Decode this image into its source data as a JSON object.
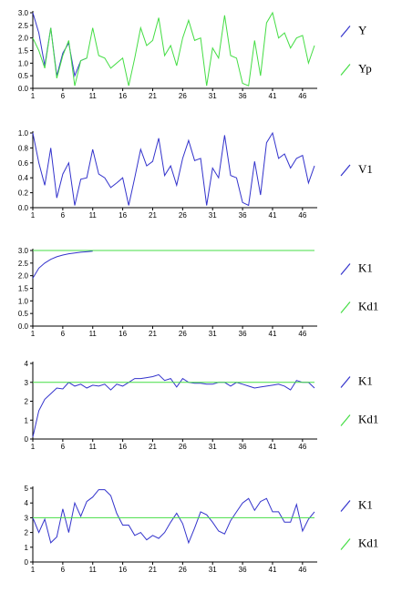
{
  "chart_data": [
    {
      "type": "line",
      "x": [
        1,
        2,
        3,
        4,
        5,
        6,
        7,
        8,
        9,
        10,
        11,
        12,
        13,
        14,
        15,
        16,
        17,
        18,
        19,
        20,
        21,
        22,
        23,
        24,
        25,
        26,
        27,
        28,
        29,
        30,
        31,
        32,
        33,
        34,
        35,
        36,
        37,
        38,
        39,
        40,
        41,
        42,
        43,
        44,
        45,
        46,
        47,
        48
      ],
      "xlim": [
        1,
        48
      ],
      "xticks": [
        1,
        6,
        11,
        16,
        21,
        26,
        31,
        36,
        41,
        46
      ],
      "ylim": [
        0,
        3
      ],
      "yticks": [
        {
          "value": 0,
          "label": "0.0"
        },
        {
          "value": 0.5,
          "label": "0.5"
        },
        {
          "value": 1,
          "label": "1.0"
        },
        {
          "value": 1.5,
          "label": "1.5"
        },
        {
          "value": 2,
          "label": "2.0"
        },
        {
          "value": 2.5,
          "label": "2.5"
        },
        {
          "value": 3,
          "label": "3.0"
        }
      ],
      "series": [
        {
          "name": "Y",
          "color": "#3333cc",
          "values": [
            3.0,
            2.2,
            0.9,
            2.4,
            0.5,
            1.4,
            1.8,
            0.5,
            1.1,
            1.2,
            null,
            null,
            null,
            null,
            null,
            null,
            null,
            null,
            null,
            null,
            null,
            null,
            null,
            null,
            null,
            null,
            null,
            null,
            null,
            null,
            null,
            null,
            null,
            null,
            null,
            null,
            null,
            null,
            null,
            null,
            null,
            null,
            null,
            null,
            null,
            null,
            null,
            null
          ]
        },
        {
          "name": "Yp",
          "color": "#44dd44",
          "values": [
            2.0,
            1.5,
            0.8,
            2.4,
            0.4,
            1.3,
            1.9,
            0.1,
            1.1,
            1.2,
            2.4,
            1.3,
            1.2,
            0.8,
            1.0,
            1.2,
            0.1,
            1.2,
            2.4,
            1.7,
            1.9,
            2.8,
            1.3,
            1.7,
            0.9,
            2.0,
            2.7,
            1.9,
            2.0,
            0.1,
            1.6,
            1.2,
            2.9,
            1.3,
            1.2,
            0.2,
            0.1,
            1.9,
            0.5,
            2.6,
            3.0,
            2.0,
            2.2,
            1.6,
            2.0,
            2.1,
            1.0,
            1.7
          ]
        }
      ]
    },
    {
      "type": "line",
      "x": [
        1,
        2,
        3,
        4,
        5,
        6,
        7,
        8,
        9,
        10,
        11,
        12,
        13,
        14,
        15,
        16,
        17,
        18,
        19,
        20,
        21,
        22,
        23,
        24,
        25,
        26,
        27,
        28,
        29,
        30,
        31,
        32,
        33,
        34,
        35,
        36,
        37,
        38,
        39,
        40,
        41,
        42,
        43,
        44,
        45,
        46,
        47,
        48
      ],
      "xlim": [
        1,
        48
      ],
      "xticks": [
        1,
        6,
        11,
        16,
        21,
        26,
        31,
        36,
        41,
        46
      ],
      "ylim": [
        0,
        1
      ],
      "yticks": [
        {
          "value": 0,
          "label": "0.0"
        },
        {
          "value": 0.2,
          "label": "0.2"
        },
        {
          "value": 0.4,
          "label": "0.4"
        },
        {
          "value": 0.6,
          "label": "0.6"
        },
        {
          "value": 0.8,
          "label": "0.8"
        },
        {
          "value": 1,
          "label": "1.0"
        }
      ],
      "series": [
        {
          "name": "V1",
          "color": "#3333cc",
          "values": [
            1.0,
            0.6,
            0.3,
            0.8,
            0.13,
            0.45,
            0.6,
            0.03,
            0.38,
            0.4,
            0.78,
            0.45,
            0.4,
            0.27,
            0.33,
            0.4,
            0.03,
            0.4,
            0.78,
            0.56,
            0.62,
            0.93,
            0.43,
            0.56,
            0.3,
            0.66,
            0.9,
            0.63,
            0.66,
            0.03,
            0.53,
            0.4,
            0.97,
            0.43,
            0.4,
            0.07,
            0.03,
            0.62,
            0.17,
            0.87,
            1.0,
            0.66,
            0.72,
            0.53,
            0.66,
            0.7,
            0.33,
            0.56
          ]
        }
      ]
    },
    {
      "type": "line",
      "x": [
        1,
        2,
        3,
        4,
        5,
        6,
        7,
        8,
        9,
        10,
        11,
        12,
        13,
        14,
        15,
        16,
        17,
        18,
        19,
        20,
        21,
        22,
        23,
        24,
        25,
        26,
        27,
        28,
        29,
        30,
        31,
        32,
        33,
        34,
        35,
        36,
        37,
        38,
        39,
        40,
        41,
        42,
        43,
        44,
        45,
        46,
        47,
        48
      ],
      "xlim": [
        1,
        48
      ],
      "xticks": [
        1,
        6,
        11,
        16,
        21,
        26,
        31,
        36,
        41,
        46
      ],
      "ylim": [
        0,
        3
      ],
      "yticks": [
        {
          "value": 0,
          "label": "0.0"
        },
        {
          "value": 0.5,
          "label": "0.5"
        },
        {
          "value": 1,
          "label": "1.0"
        },
        {
          "value": 1.5,
          "label": "1.5"
        },
        {
          "value": 2,
          "label": "2.0"
        },
        {
          "value": 2.5,
          "label": "2.5"
        },
        {
          "value": 3,
          "label": "3.0"
        }
      ],
      "series": [
        {
          "name": "K1",
          "color": "#3333cc",
          "values": [
            1.9,
            2.3,
            2.5,
            2.65,
            2.75,
            2.82,
            2.87,
            2.9,
            2.93,
            2.95,
            2.97,
            null,
            null,
            null,
            null,
            null,
            null,
            null,
            null,
            null,
            null,
            null,
            null,
            null,
            null,
            null,
            null,
            null,
            null,
            null,
            null,
            null,
            null,
            null,
            null,
            null,
            null,
            null,
            null,
            null,
            null,
            null,
            null,
            null,
            null,
            null,
            null,
            null
          ]
        },
        {
          "name": "Kd1",
          "color": "#44dd44",
          "values": [
            3,
            3,
            3,
            3,
            3,
            3,
            3,
            3,
            3,
            3,
            3,
            3,
            3,
            3,
            3,
            3,
            3,
            3,
            3,
            3,
            3,
            3,
            3,
            3,
            3,
            3,
            3,
            3,
            3,
            3,
            3,
            3,
            3,
            3,
            3,
            3,
            3,
            3,
            3,
            3,
            3,
            3,
            3,
            3,
            3,
            3,
            3,
            3
          ]
        }
      ]
    },
    {
      "type": "line",
      "x": [
        1,
        2,
        3,
        4,
        5,
        6,
        7,
        8,
        9,
        10,
        11,
        12,
        13,
        14,
        15,
        16,
        17,
        18,
        19,
        20,
        21,
        22,
        23,
        24,
        25,
        26,
        27,
        28,
        29,
        30,
        31,
        32,
        33,
        34,
        35,
        36,
        37,
        38,
        39,
        40,
        41,
        42,
        43,
        44,
        45,
        46,
        47,
        48
      ],
      "xlim": [
        1,
        48
      ],
      "xticks": [
        1,
        6,
        11,
        16,
        21,
        26,
        31,
        36,
        41,
        46
      ],
      "ylim": [
        0,
        4
      ],
      "yticks": [
        0,
        1,
        2,
        3,
        4
      ],
      "series": [
        {
          "name": "K1",
          "color": "#3333cc",
          "values": [
            0.1,
            1.5,
            2.1,
            2.4,
            2.7,
            2.65,
            3.0,
            2.8,
            2.9,
            2.7,
            2.85,
            2.8,
            2.9,
            2.6,
            2.9,
            2.8,
            3.0,
            3.2,
            3.2,
            3.25,
            3.3,
            3.4,
            3.1,
            3.2,
            2.75,
            3.2,
            3.0,
            2.95,
            2.95,
            2.9,
            2.9,
            3.0,
            3.0,
            2.8,
            3.0,
            2.9,
            2.8,
            2.7,
            2.75,
            2.8,
            2.85,
            2.9,
            2.8,
            2.6,
            3.1,
            3.0,
            3.0,
            2.7
          ]
        },
        {
          "name": "Kd1",
          "color": "#44dd44",
          "values": [
            3,
            3,
            3,
            3,
            3,
            3,
            3,
            3,
            3,
            3,
            3,
            3,
            3,
            3,
            3,
            3,
            3,
            3,
            3,
            3,
            3,
            3,
            3,
            3,
            3,
            3,
            3,
            3,
            3,
            3,
            3,
            3,
            3,
            3,
            3,
            3,
            3,
            3,
            3,
            3,
            3,
            3,
            3,
            3,
            3,
            3,
            3,
            3
          ]
        }
      ]
    },
    {
      "type": "line",
      "x": [
        1,
        2,
        3,
        4,
        5,
        6,
        7,
        8,
        9,
        10,
        11,
        12,
        13,
        14,
        15,
        16,
        17,
        18,
        19,
        20,
        21,
        22,
        23,
        24,
        25,
        26,
        27,
        28,
        29,
        30,
        31,
        32,
        33,
        34,
        35,
        36,
        37,
        38,
        39,
        40,
        41,
        42,
        43,
        44,
        45,
        46,
        47,
        48
      ],
      "xlim": [
        1,
        48
      ],
      "xticks": [
        1,
        6,
        11,
        16,
        21,
        26,
        31,
        36,
        41,
        46
      ],
      "ylim": [
        0,
        5
      ],
      "yticks": [
        0,
        1,
        2,
        3,
        4,
        5
      ],
      "series": [
        {
          "name": "K1",
          "color": "#3333cc",
          "values": [
            3.0,
            2.0,
            2.9,
            1.3,
            1.7,
            3.6,
            2.0,
            4.0,
            3.1,
            4.1,
            4.4,
            4.9,
            4.9,
            4.5,
            3.3,
            2.5,
            2.5,
            1.8,
            2.0,
            1.5,
            1.8,
            1.6,
            2.0,
            2.7,
            3.3,
            2.6,
            1.3,
            2.3,
            3.4,
            3.2,
            2.7,
            2.1,
            1.9,
            2.8,
            3.4,
            4.0,
            4.3,
            3.5,
            4.1,
            4.3,
            3.4,
            3.4,
            2.7,
            2.7,
            3.9,
            2.1,
            2.9,
            3.4
          ]
        },
        {
          "name": "Kd1",
          "color": "#44dd44",
          "values": [
            3,
            3,
            3,
            3,
            3,
            3,
            3,
            3,
            3,
            3,
            3,
            3,
            3,
            3,
            3,
            3,
            3,
            3,
            3,
            3,
            3,
            3,
            3,
            3,
            3,
            3,
            3,
            3,
            3,
            3,
            3,
            3,
            3,
            3,
            3,
            3,
            3,
            3,
            3,
            3,
            3,
            3,
            3,
            3,
            3,
            3,
            3,
            3
          ]
        }
      ]
    }
  ]
}
